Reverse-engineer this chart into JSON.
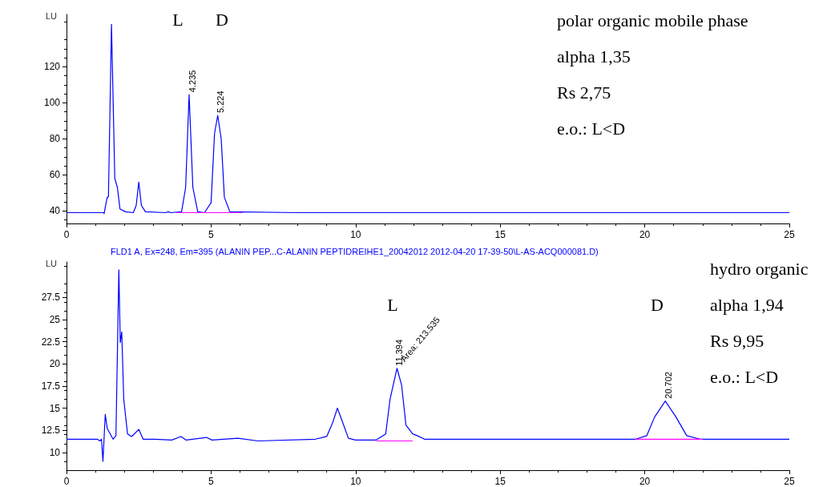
{
  "chart_data": [
    {
      "type": "line",
      "ylabel": "LU",
      "xlim": [
        0,
        25
      ],
      "ylim": [
        33,
        149
      ],
      "xticks": [
        0,
        5,
        10,
        15,
        20,
        25
      ],
      "yticks": [
        40,
        60,
        80,
        100,
        120
      ],
      "marker": "none",
      "line_style": "solid",
      "series": [
        {
          "color": "#0000ff",
          "x": [
            0,
            1.28,
            1.3,
            1.4,
            1.45,
            1.556,
            1.67,
            1.76,
            1.85,
            2.04,
            2.31,
            2.41,
            2.5,
            2.59,
            2.73,
            3.43,
            3.52,
            3.6,
            3.98,
            4.12,
            4.24,
            4.37,
            4.54,
            4.77,
            5.0,
            5.12,
            5.23,
            5.35,
            5.46,
            5.65,
            8,
            12,
            16,
            20,
            25
          ],
          "values": [
            39,
            39,
            38.5,
            47,
            48,
            143.5,
            58,
            53,
            41,
            39.5,
            39,
            43,
            56,
            43,
            39.5,
            39,
            39.5,
            39,
            39.5,
            53,
            104.5,
            53,
            39.5,
            39,
            44.5,
            83,
            93,
            80,
            47.5,
            39.5,
            39,
            39,
            39,
            39,
            39
          ]
        },
        {
          "color": "#ff00ff",
          "x": [
            3.8,
            6.1
          ],
          "values": [
            39,
            39
          ]
        }
      ],
      "annotations": [
        "L",
        "D",
        {
          "text": "4.235",
          "x": 4.235,
          "y": 104.5
        },
        {
          "text": "5.224",
          "x": 5.224,
          "y": 93
        },
        "polar organic mobile phase",
        "alpha 1,35",
        "Rs 2,75",
        "e.o.: L<D"
      ]
    },
    {
      "type": "line",
      "title": "FLD1 A, Ex=248, Em=395 (ALANIN PEP...C-ALANIN PEPTIDREIHE1_20042012 2012-04-20 17-39-50\\L-AS-ACQ000081.D)",
      "ylabel": "LU",
      "xlim": [
        0,
        25
      ],
      "ylim": [
        8,
        31.5
      ],
      "xticks": [
        0,
        5,
        10,
        15,
        20,
        25
      ],
      "yticks": [
        10,
        12.5,
        15,
        17.5,
        20,
        22.5,
        25,
        27.5
      ],
      "marker": "none",
      "line_style": "solid",
      "series": [
        {
          "color": "#0000ff",
          "x": [
            0,
            1.06,
            1.16,
            1.21,
            1.26,
            1.34,
            1.41,
            1.61,
            1.71,
            1.81,
            1.86,
            1.91,
            1.98,
            2.11,
            2.25,
            2.5,
            2.65,
            3.05,
            3.64,
            3.96,
            4.14,
            4.84,
            5.03,
            5.93,
            6.62,
            8.61,
            9.0,
            9.21,
            9.37,
            9.55,
            9.75,
            10,
            10.7,
            11.04,
            11.19,
            11.43,
            11.59,
            11.74,
            11.97,
            12.13,
            12.38,
            16,
            19.69,
            20.07,
            20.34,
            20.71,
            21.08,
            21.45,
            21.91,
            25
          ],
          "values": [
            11.5,
            11.5,
            11.3,
            11.5,
            9,
            14.3,
            12.7,
            11.5,
            11.9,
            30.6,
            22.4,
            23.6,
            16,
            12.1,
            11.8,
            12.6,
            11.5,
            11.5,
            11.4,
            11.8,
            11.4,
            11.7,
            11.4,
            11.6,
            11.3,
            11.5,
            11.8,
            13.4,
            15,
            13.4,
            11.6,
            11.4,
            11.4,
            12.1,
            16,
            19.5,
            17.6,
            13.1,
            12.1,
            11.9,
            11.5,
            11.5,
            11.5,
            11.9,
            14,
            15.8,
            14,
            11.9,
            11.5,
            11.5
          ]
        },
        {
          "color": "#ff00ff",
          "x": [
            10.72,
            11.97,
            15,
            19.69,
            22.0
          ],
          "values": [
            11.3,
            11.3,
            null,
            11.5,
            11.5
          ]
        }
      ],
      "annotations": [
        "L",
        "D",
        {
          "text": "11.394",
          "x": 11.394,
          "y": 19.5
        },
        "Area: 213.535",
        {
          "text": "20.702",
          "x": 20.702,
          "y": 15.8
        },
        "hydro organic",
        "alpha 1,94",
        "Rs 9,95",
        "e.o.: L<D"
      ]
    }
  ]
}
